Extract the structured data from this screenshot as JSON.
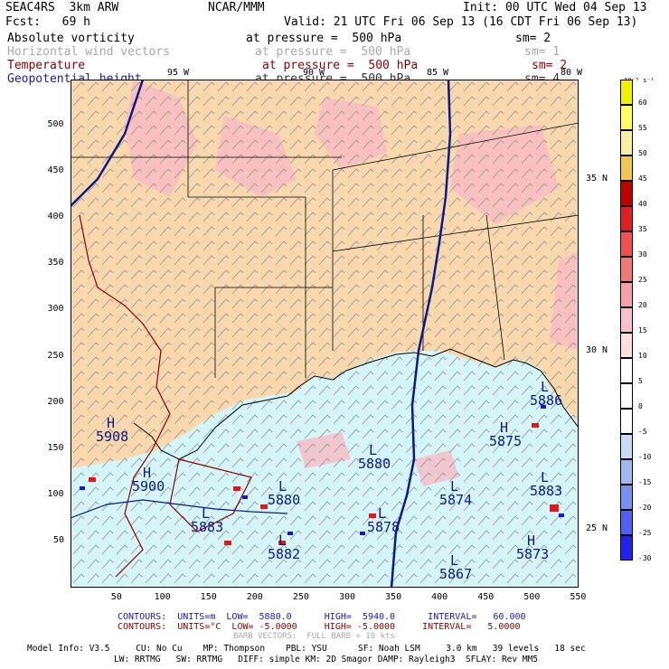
{
  "header": {
    "model": "SEAC4RS  3km ARW",
    "center": "NCAR/MMM",
    "init": "Init: 00 UTC Wed 04 Sep 13",
    "fcst": "Fcst:   69 h",
    "valid": "Valid: 21 UTC Fri 06 Sep 13 (16 CDT Fri 06 Sep 13)"
  },
  "fields": [
    {
      "name": "Absolute vorticity",
      "level": "at pressure =  500 hPa",
      "sm": "sm= 2",
      "color": "#000000"
    },
    {
      "name": "Horizontal wind vectors",
      "level": "at pressure =  500 hPa",
      "sm": "sm= 1",
      "color": "#a9a9a9"
    },
    {
      "name": "Temperature",
      "level": "at pressure =  500 hPa",
      "sm": "sm= 2",
      "color": "#8b0000"
    },
    {
      "name": "Geopotential height",
      "level": "at pressure =  500 hPa",
      "sm": "sm= 4",
      "color": "#1a1aa8"
    }
  ],
  "map": {
    "x_ticks": [
      "50",
      "100",
      "150",
      "200",
      "250",
      "300",
      "350",
      "400",
      "450",
      "500",
      "550"
    ],
    "y_ticks": [
      "50",
      "100",
      "150",
      "200",
      "250",
      "300",
      "350",
      "400",
      "450",
      "500"
    ],
    "lon_labels": [
      "95 W",
      "90 W",
      "85 W",
      "80 W"
    ],
    "lat_labels": [
      "35 N",
      "30 N",
      "25 N"
    ],
    "colors": {
      "land": "#f8d8ac",
      "sea": "#d4f6f8",
      "vort_pos": "#f8bcc4",
      "coast": "#000000",
      "temp_contour": "#8b0000",
      "height_contour": "#0a1a8a"
    },
    "height_labels": [
      {
        "kind": "L",
        "value": "5880"
      },
      {
        "kind": "L",
        "value": "5874"
      },
      {
        "kind": "L",
        "value": "5878"
      },
      {
        "kind": "L",
        "value": "5882"
      },
      {
        "kind": "L",
        "value": "5867"
      },
      {
        "kind": "H",
        "value": "5875"
      },
      {
        "kind": "H",
        "value": "5873"
      },
      {
        "kind": "H",
        "value": "5900"
      },
      {
        "kind": "L",
        "value": "5880"
      },
      {
        "kind": "L",
        "value": "5883"
      },
      {
        "kind": "H",
        "value": "5908"
      },
      {
        "kind": "L",
        "value": "5886"
      },
      {
        "kind": "L",
        "value": "5883"
      }
    ]
  },
  "colorbar": {
    "unit": "10⁻⁵ s⁻¹",
    "labels": [
      "60",
      "55",
      "50",
      "45",
      "40",
      "35",
      "30",
      "25",
      "20",
      "15",
      "10",
      "5",
      "0",
      "-5",
      "-10",
      "-15",
      "-20",
      "-25",
      "-30"
    ],
    "colors": [
      "#f0f000",
      "#ffff60",
      "#f8f0a0",
      "#f0c850",
      "#c00000",
      "#e02020",
      "#f05050",
      "#f07878",
      "#f8a0a8",
      "#f8c0c8",
      "#fcdede",
      "#ffffff",
      "#ffffff",
      "#ffffff",
      "#c8dcf8",
      "#a0b8f0",
      "#7890f0",
      "#5060f0",
      "#2020f0"
    ]
  },
  "footer": {
    "contours_height": "CONTOURS:  UNITS=m  LOW=  5880.0      HIGH=  5940.0      INTERVAL=   60.000",
    "contours_temp": "CONTOURS:  UNITS=°C  LOW= -5.0000     HIGH= -5.0000     INTERVAL=   5.0000",
    "barb": "BARB VECTORS:  FULL BARB = 10 kts",
    "info1": "Model Info: V3.5     CU: No Cu    MP: Thompson    PBL: YSU      SF: Noah LSM     3.0 km   39 levels   18 sec",
    "info2": "LW: RRTMG   SW: RRTMG   DIFF: simple KM: 2D Smagor DAMP: Rayleigh3  SFLAY: Rev MM5"
  }
}
